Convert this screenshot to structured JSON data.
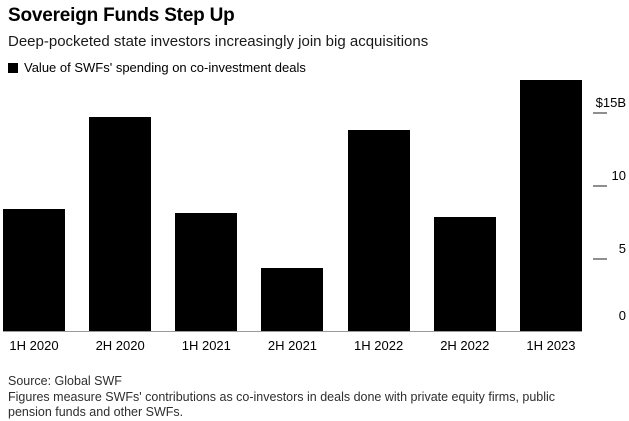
{
  "header": {
    "title": "Sovereign Funds Step Up",
    "subtitle": "Deep-pocketed state investors increasingly join big acquisitions",
    "legend_label": "Value of SWFs' spending on co-investment deals"
  },
  "footer": {
    "source": "Source: Global SWF",
    "note": "Figures measure SWFs' contributions as co-investors in deals done with private equity firms, public pension funds and other SWFs."
  },
  "colors": {
    "bar": "#000000",
    "axis_line": "#9a9a9a",
    "tick": "#8f8f8f",
    "background": "#ffffff"
  },
  "chart_data": {
    "type": "bar",
    "title": "Sovereign Funds Step Up",
    "subtitle": "Deep-pocketed state investors increasingly join big acquisitions",
    "legend": [
      "Value of SWFs' spending on co-investment deals"
    ],
    "legend_position": "top-left",
    "categories": [
      "1H 2020",
      "2H 2020",
      "1H 2021",
      "2H 2021",
      "1H 2022",
      "2H 2022",
      "1H 2023"
    ],
    "values": [
      8.4,
      14.7,
      8.1,
      4.3,
      13.8,
      7.8,
      17.2
    ],
    "unit": "USD billions",
    "xlabel": "",
    "ylabel": "$B",
    "ylim": [
      0,
      17.3
    ],
    "yticks": [
      {
        "value": 15,
        "label": "$15B"
      },
      {
        "value": 10,
        "label": "10"
      },
      {
        "value": 5,
        "label": "5"
      },
      {
        "value": 0,
        "label": "0"
      }
    ],
    "y_axis_side": "right",
    "grid": false,
    "bar_color": "#000000",
    "source": "Source: Global SWF"
  }
}
